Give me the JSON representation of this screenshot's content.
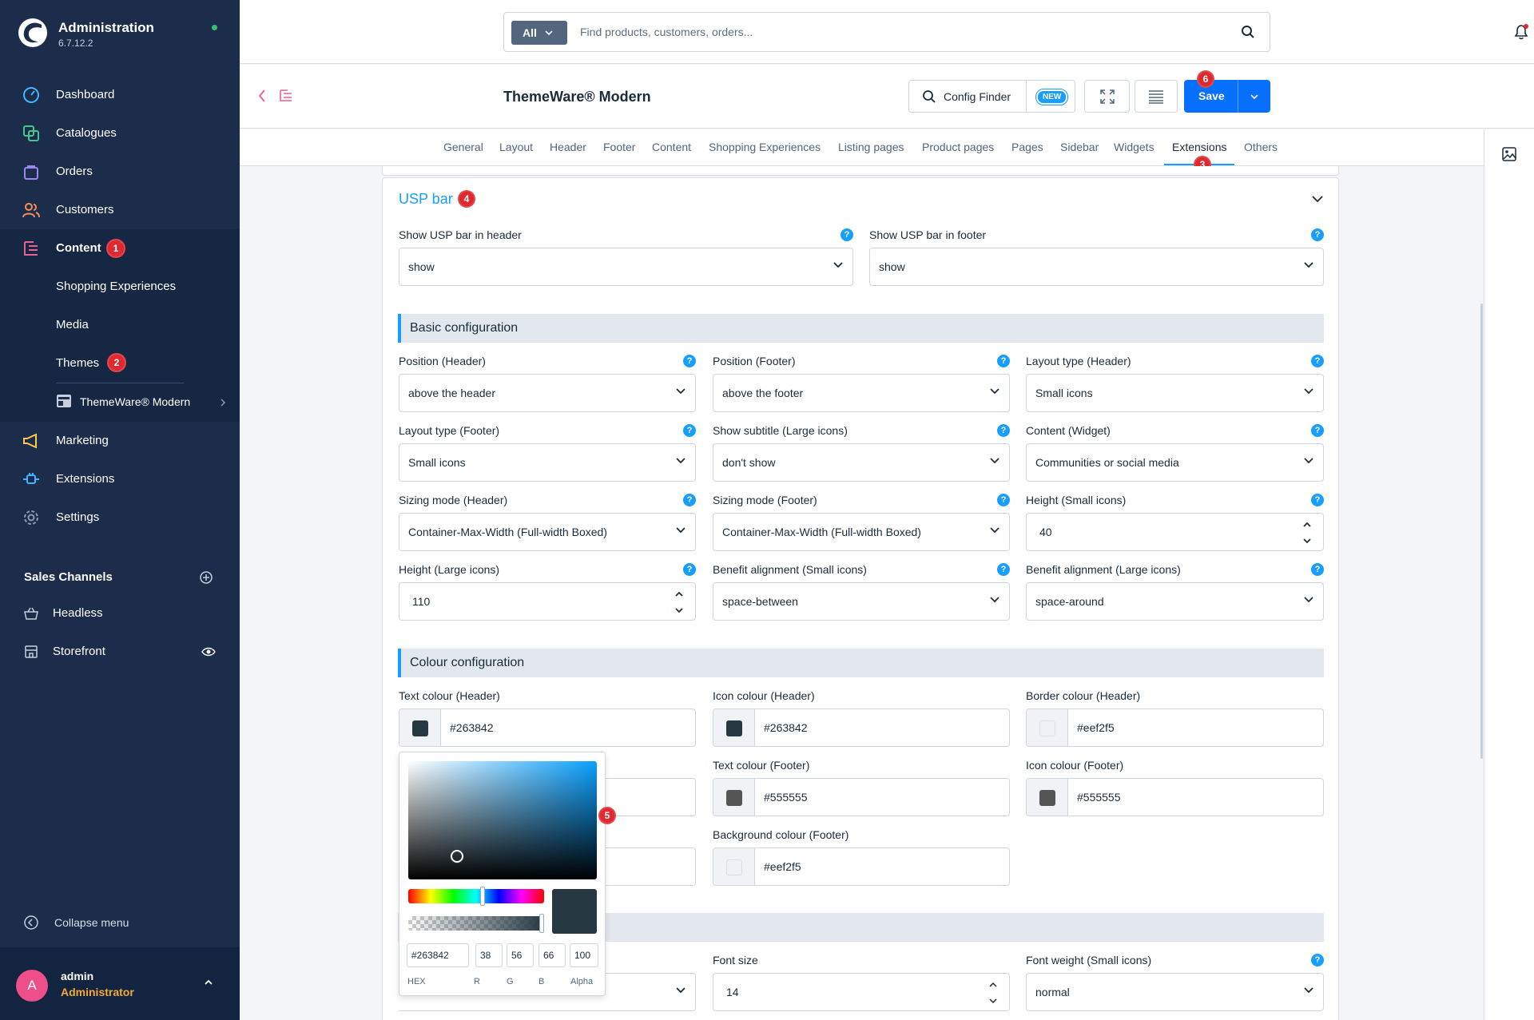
{
  "app": {
    "title": "Administration",
    "version": "6.7.12.2"
  },
  "sidebar": {
    "items": [
      {
        "label": "Dashboard"
      },
      {
        "label": "Catalogues"
      },
      {
        "label": "Orders"
      },
      {
        "label": "Customers"
      },
      {
        "label": "Content",
        "badge": "1"
      },
      {
        "label": "Marketing"
      },
      {
        "label": "Extensions"
      },
      {
        "label": "Settings"
      }
    ],
    "content_children": [
      {
        "label": "Shopping Experiences"
      },
      {
        "label": "Media"
      },
      {
        "label": "Themes",
        "badge": "2"
      },
      {
        "label": "ThemeWare® Modern"
      }
    ],
    "sales_channels_title": "Sales Channels",
    "sales_channels": [
      {
        "label": "Headless"
      },
      {
        "label": "Storefront"
      }
    ],
    "collapse_label": "Collapse menu",
    "user": {
      "initial": "A",
      "name": "admin",
      "role": "Administrator"
    }
  },
  "search": {
    "scope": "All",
    "placeholder": "Find products, customers, orders..."
  },
  "header": {
    "title": "ThemeWare® Modern",
    "config_finder": "Config Finder",
    "new_badge": "NEW",
    "save_label": "Save",
    "save_badge": "6"
  },
  "tabs": [
    "General",
    "Layout",
    "Header",
    "Footer",
    "Content",
    "Shopping Experiences",
    "Listing pages",
    "Product pages",
    "Pages",
    "Sidebar",
    "Widgets",
    "Extensions",
    "Others"
  ],
  "tabs_active": "Extensions",
  "tabs_badge": "3",
  "card": {
    "title": "USP bar",
    "title_badge": "4",
    "show_header": {
      "label": "Show USP bar in header",
      "value": "show"
    },
    "show_footer": {
      "label": "Show USP bar in footer",
      "value": "show"
    },
    "basic_title": "Basic configuration",
    "basic": [
      {
        "label": "Position (Header)",
        "value": "above the header"
      },
      {
        "label": "Position (Footer)",
        "value": "above the footer"
      },
      {
        "label": "Layout type (Header)",
        "value": "Small icons"
      },
      {
        "label": "Layout type (Footer)",
        "value": "Small icons"
      },
      {
        "label": "Show subtitle (Large icons)",
        "value": "don't show"
      },
      {
        "label": "Content (Widget)",
        "value": "Communities or social media"
      },
      {
        "label": "Sizing mode (Header)",
        "value": "Container-Max-Width (Full-width Boxed)"
      },
      {
        "label": "Sizing mode (Footer)",
        "value": "Container-Max-Width (Full-width Boxed)"
      },
      {
        "label": "Height (Small icons)",
        "value": "40"
      },
      {
        "label": "Height (Large icons)",
        "value": "110"
      },
      {
        "label": "Benefit alignment (Small icons)",
        "value": "space-between"
      },
      {
        "label": "Benefit alignment (Large icons)",
        "value": "space-around"
      }
    ],
    "colour_title": "Colour configuration",
    "colours": [
      {
        "label": "Text colour (Header)",
        "value": "#263842",
        "color": "#263842"
      },
      {
        "label": "Icon colour (Header)",
        "value": "#263842",
        "color": "#263842"
      },
      {
        "label": "Border colour (Header)",
        "value": "#eef2f5",
        "color": "#eef2f5"
      },
      {
        "label": "Text colour (Footer)",
        "value": "#555555",
        "color": "#555555"
      },
      {
        "label": "Icon colour (Footer)",
        "value": "#555555",
        "color": "#555555"
      },
      {
        "label": "Background colour (Footer)",
        "value": "#eef2f5",
        "color": "#eef2f5"
      }
    ],
    "font_size": {
      "label": "Font size",
      "value": "14"
    },
    "font_weight": {
      "label": "Font weight (Small icons)",
      "value": "normal"
    }
  },
  "picker": {
    "badge": "5",
    "hex": "#263842",
    "r": "38",
    "g": "56",
    "b": "66",
    "alpha": "100",
    "hex_label": "HEX",
    "r_label": "R",
    "g_label": "G",
    "b_label": "B",
    "alpha_label": "Alpha",
    "preview_color": "#263842"
  },
  "colors": {
    "accent": "#189eff",
    "primary_button": "#0870ff",
    "sidebar_bg": "#1b2d4a",
    "badge_red": "#de2930"
  }
}
